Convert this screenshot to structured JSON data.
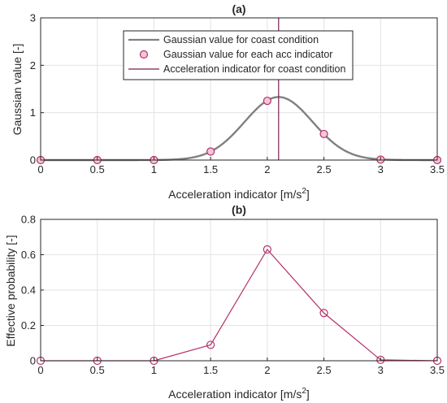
{
  "chart_data": [
    {
      "type": "line",
      "title": "(a)",
      "xlabel": "Acceleration indicator [m/s",
      "xlabel_sup": "2",
      "xlabel_end": "]",
      "ylabel": "Gaussian value [-]",
      "xlim": [
        0,
        3.5
      ],
      "ylim": [
        0,
        3
      ],
      "xticks": [
        0,
        0.5,
        1,
        1.5,
        2,
        2.5,
        3,
        3.5
      ],
      "xtick_labels": [
        "0",
        "0.5",
        "1",
        "1.5",
        "2",
        "2.5",
        "3",
        "3.5"
      ],
      "yticks": [
        0,
        1,
        2,
        3
      ],
      "ytick_labels": [
        "0",
        "1",
        "2",
        "3"
      ],
      "grid": true,
      "legend_position": "top-right",
      "series": [
        {
          "name": "Gaussian value for coast condition",
          "kind": "curve",
          "color": "#808080",
          "gaussian": {
            "mean": 2.1,
            "sigma": 0.3,
            "peak": 1.33
          }
        },
        {
          "name": "Gaussian value for each acc indicator",
          "kind": "markers",
          "color": "#b5306b",
          "x": [
            0,
            0.5,
            1,
            1.5,
            2,
            2.5,
            3,
            3.5
          ],
          "y": [
            0,
            0,
            0,
            0.18,
            1.25,
            0.55,
            0.01,
            0
          ]
        },
        {
          "name": "Acceleration indicator for coast condition",
          "kind": "vline",
          "color": "#7a1f4e",
          "x": 2.1
        }
      ]
    },
    {
      "type": "line",
      "title": "(b)",
      "xlabel": "Acceleration indicator [m/s",
      "xlabel_sup": "2",
      "xlabel_end": "]",
      "ylabel": "Effective probability [-]",
      "xlim": [
        0,
        3.5
      ],
      "ylim": [
        0,
        0.8
      ],
      "xticks": [
        0,
        0.5,
        1,
        1.5,
        2,
        2.5,
        3,
        3.5
      ],
      "xtick_labels": [
        "0",
        "0.5",
        "1",
        "1.5",
        "2",
        "2.5",
        "3",
        "3.5"
      ],
      "yticks": [
        0,
        0.2,
        0.4,
        0.6,
        0.8
      ],
      "ytick_labels": [
        "0",
        "0.2",
        "0.4",
        "0.6",
        "0.8"
      ],
      "grid": true,
      "series": [
        {
          "kind": "line-markers",
          "color": "#b5306b",
          "x": [
            0,
            0.5,
            1,
            1.5,
            2,
            2.5,
            3,
            3.5
          ],
          "y": [
            0,
            0,
            0,
            0.09,
            0.63,
            0.27,
            0.005,
            0
          ]
        }
      ]
    }
  ]
}
